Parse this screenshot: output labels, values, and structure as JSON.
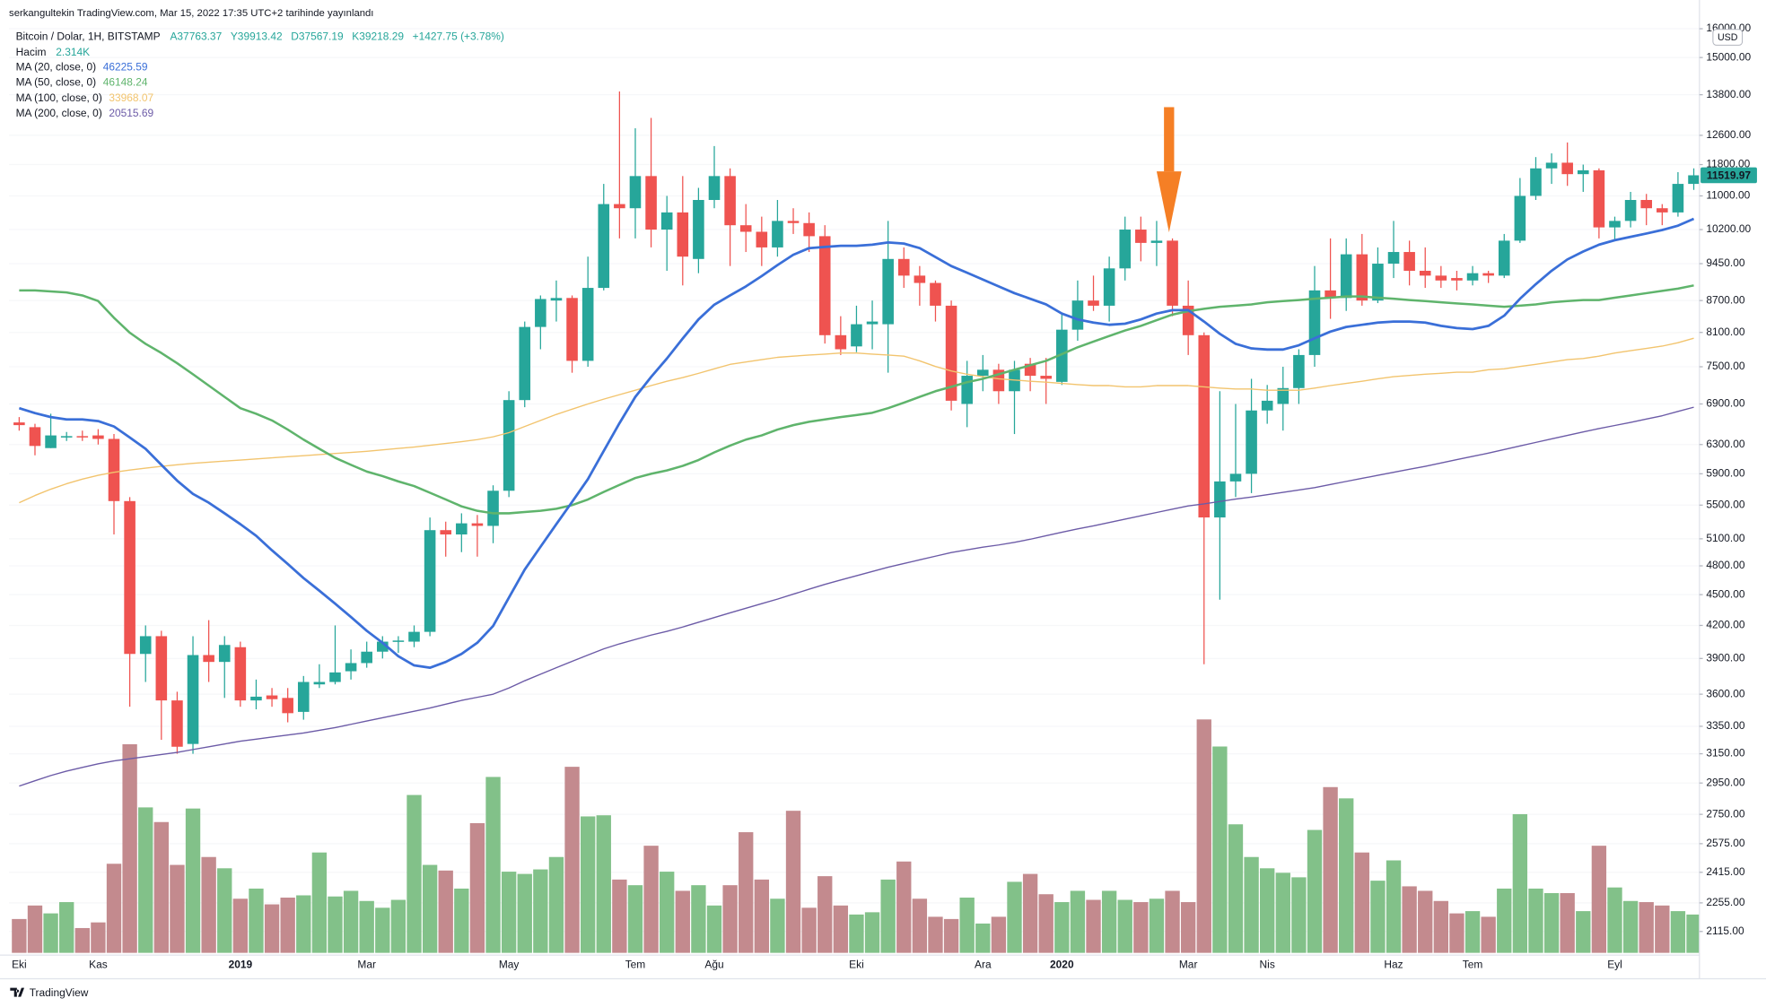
{
  "header": "serkangultekin TradingView.com, Mar 15, 2022 17:35 UTC+2 tarihinde yayınlandı",
  "chart_data": {
    "type": "candlestick",
    "symbol": "Bitcoin / Dolar, 1H, BITSTAMP",
    "ohlc_labels": [
      "A37763.37",
      "Y39913.42",
      "D37567.19",
      "K39218.29"
    ],
    "change": "+1427.75 (+3.78%)",
    "volume_name": "Hacim",
    "volume_legend": "2.314K",
    "currency": "USD",
    "categories": [
      "Eki",
      null,
      null,
      null,
      null,
      "Kas",
      null,
      null,
      null,
      null,
      null,
      null,
      null,
      null,
      "2019",
      null,
      null,
      null,
      null,
      null,
      null,
      null,
      "Mar",
      null,
      null,
      null,
      null,
      null,
      null,
      null,
      null,
      "May",
      null,
      null,
      null,
      null,
      null,
      null,
      null,
      "Tem",
      null,
      null,
      null,
      null,
      "Ağu",
      null,
      null,
      null,
      null,
      null,
      null,
      null,
      null,
      "Eki",
      null,
      null,
      null,
      null,
      null,
      null,
      null,
      "Ara",
      null,
      null,
      null,
      null,
      "2020",
      null,
      null,
      null,
      null,
      null,
      null,
      null,
      "Mar",
      null,
      null,
      null,
      null,
      "Nis",
      null,
      null,
      null,
      null,
      null,
      null,
      null,
      "Haz",
      null,
      null,
      null,
      null,
      "Tem",
      null,
      null,
      null,
      null,
      null,
      null,
      null,
      null,
      "Eyl",
      null,
      null,
      null,
      null,
      null
    ],
    "open": [
      6620,
      6550,
      6250,
      6400,
      6420,
      6430,
      6380,
      5550,
      3940,
      4100,
      3550,
      3220,
      3930,
      3870,
      4000,
      3550,
      3590,
      3570,
      3460,
      3680,
      3700,
      3790,
      3860,
      3960,
      4050,
      4050,
      4140,
      5200,
      5150,
      5280,
      5250,
      5680,
      6960,
      8200,
      8700,
      8750,
      7600,
      8950,
      10800,
      10700,
      11500,
      10200,
      10600,
      9550,
      10900,
      11500,
      10300,
      10150,
      9800,
      10400,
      10350,
      10050,
      8050,
      7850,
      8250,
      8250,
      9550,
      9200,
      9050,
      8600,
      6900,
      7350,
      7450,
      7100,
      7550,
      7350,
      7250,
      8150,
      8700,
      8600,
      9350,
      10200,
      9900,
      9950,
      8600,
      8050,
      5350,
      5800,
      5900,
      6800,
      6900,
      7150,
      7700,
      8900,
      8750,
      9650,
      8700,
      9450,
      9700,
      9300,
      9200,
      9150,
      9100,
      9250,
      9200,
      9950,
      11000,
      11700,
      11850,
      11550,
      11650,
      10250,
      10400,
      10900,
      10700,
      10600,
      11300
    ],
    "high": [
      6700,
      6600,
      6750,
      6480,
      6500,
      6520,
      6450,
      5600,
      4200,
      4150,
      3620,
      4100,
      4250,
      4100,
      4050,
      3720,
      3650,
      3650,
      3750,
      3850,
      4200,
      3980,
      4050,
      4100,
      4100,
      4200,
      5350,
      5300,
      5400,
      5380,
      5750,
      7100,
      8300,
      8800,
      9100,
      8800,
      9600,
      11300,
      13900,
      12800,
      13100,
      11000,
      11500,
      11200,
      12300,
      11700,
      10800,
      10500,
      10900,
      10700,
      10600,
      10300,
      8400,
      8600,
      8700,
      10400,
      9800,
      9400,
      9100,
      8700,
      7600,
      7700,
      7550,
      7600,
      7650,
      7650,
      8450,
      9100,
      9200,
      9600,
      10500,
      10500,
      10400,
      10000,
      9100,
      8100,
      7100,
      6900,
      7300,
      7200,
      7500,
      7800,
      9400,
      10000,
      10000,
      10100,
      9800,
      10400,
      9950,
      9800,
      9400,
      9300,
      9400,
      9300,
      10100,
      11450,
      12000,
      12100,
      12400,
      11800,
      11700,
      10500,
      11100,
      11050,
      10800,
      11600,
      11700
    ],
    "low": [
      6500,
      6150,
      6250,
      6350,
      6350,
      6300,
      5150,
      3500,
      3700,
      3250,
      3150,
      3150,
      3700,
      3570,
      3500,
      3480,
      3500,
      3380,
      3400,
      3650,
      3680,
      3720,
      3820,
      3900,
      3950,
      4000,
      4100,
      4900,
      4950,
      4900,
      5050,
      5600,
      6850,
      7800,
      8300,
      7400,
      7500,
      8900,
      10000,
      10000,
      9800,
      9300,
      9000,
      9250,
      10700,
      9400,
      9700,
      9400,
      9600,
      10100,
      9700,
      7900,
      7700,
      7750,
      7800,
      7400,
      8950,
      8600,
      8300,
      6800,
      6550,
      7100,
      6900,
      6450,
      7100,
      6900,
      7200,
      7950,
      8500,
      8300,
      9100,
      9500,
      9400,
      8400,
      7700,
      3850,
      4450,
      5600,
      5650,
      6600,
      6500,
      6900,
      7500,
      8350,
      8500,
      8600,
      8650,
      9150,
      9000,
      8950,
      8950,
      8900,
      9000,
      9050,
      9150,
      9900,
      10900,
      11300,
      11250,
      11100,
      10000,
      9950,
      10250,
      10300,
      10300,
      10500,
      11150
    ],
    "close": [
      6580,
      6280,
      6430,
      6420,
      6410,
      6380,
      5550,
      3940,
      4100,
      3550,
      3200,
      3930,
      3870,
      4020,
      3550,
      3580,
      3560,
      3450,
      3700,
      3700,
      3780,
      3860,
      3960,
      4050,
      4060,
      4140,
      5200,
      5150,
      5280,
      5250,
      5680,
      6960,
      8200,
      8730,
      8750,
      7600,
      8950,
      10800,
      10700,
      11500,
      10200,
      10600,
      9600,
      10900,
      11500,
      10300,
      10150,
      9800,
      10400,
      10350,
      10050,
      8050,
      7800,
      8250,
      8300,
      9550,
      9200,
      9050,
      8600,
      6950,
      7350,
      7450,
      7100,
      7450,
      7350,
      7300,
      8150,
      8700,
      8600,
      9350,
      10200,
      9900,
      9950,
      8600,
      8050,
      5350,
      5800,
      5900,
      6800,
      6950,
      7150,
      7700,
      8900,
      8750,
      9650,
      8700,
      9450,
      9700,
      9300,
      9200,
      9100,
      9100,
      9250,
      9200,
      9950,
      11000,
      11700,
      11850,
      11550,
      11650,
      10250,
      10400,
      10900,
      10700,
      10600,
      11300,
      11520
    ],
    "volume": [
      30,
      42,
      35,
      45,
      22,
      27,
      79,
      185,
      129,
      116,
      78,
      128,
      85,
      75,
      48,
      57,
      43,
      49,
      51,
      89,
      50,
      55,
      46,
      40,
      47,
      140,
      78,
      73,
      57,
      115,
      156,
      72,
      70,
      74,
      85,
      165,
      121,
      122,
      65,
      60,
      95,
      72,
      55,
      60,
      42,
      60,
      107,
      65,
      48,
      126,
      40,
      68,
      42,
      34,
      36,
      65,
      81,
      48,
      32,
      30,
      49,
      26,
      32,
      63,
      70,
      52,
      45,
      55,
      47,
      55,
      47,
      45,
      48,
      55,
      45,
      207,
      183,
      114,
      85,
      75,
      71,
      67,
      109,
      147,
      137,
      89,
      64,
      82,
      59,
      55,
      46,
      35,
      37,
      32,
      57,
      123,
      57,
      53,
      53,
      37,
      95,
      58,
      46,
      45,
      42,
      37,
      34
    ],
    "up_color": "#26a69a",
    "down_color": "#ef5350",
    "volume_up_color": "#82c189",
    "volume_down_color": "#c38a8e",
    "ma": [
      {
        "name": "MA (20, close, 0)",
        "color": "#3a6fd8",
        "legend_value": 46225.59,
        "values": [
          6835,
          6760,
          6700,
          6665,
          6665,
          6640,
          6560,
          6400,
          6240,
          6020,
          5810,
          5640,
          5530,
          5400,
          5270,
          5135,
          4970,
          4820,
          4670,
          4540,
          4410,
          4280,
          4150,
          4040,
          3920,
          3840,
          3820,
          3870,
          3940,
          4040,
          4195,
          4470,
          4760,
          5010,
          5270,
          5540,
          5830,
          6210,
          6610,
          7010,
          7330,
          7640,
          7990,
          8340,
          8620,
          8800,
          8980,
          9190,
          9420,
          9640,
          9785,
          9810,
          9835,
          9835,
          9860,
          9910,
          9885,
          9785,
          9590,
          9400,
          9260,
          9120,
          8980,
          8845,
          8735,
          8625,
          8450,
          8340,
          8280,
          8240,
          8260,
          8340,
          8450,
          8515,
          8515,
          8300,
          8075,
          7895,
          7815,
          7795,
          7795,
          7870,
          7995,
          8115,
          8200,
          8240,
          8280,
          8300,
          8300,
          8280,
          8220,
          8180,
          8160,
          8220,
          8410,
          8735,
          9025,
          9300,
          9540,
          9710,
          9860,
          9960,
          10035,
          10110,
          10190,
          10290,
          10450
        ]
      },
      {
        "name": "MA (50, close, 0)",
        "color": "#5fb46c",
        "legend_value": 46148.24,
        "values": [
          8900,
          8900,
          8880,
          8860,
          8800,
          8690,
          8370,
          8095,
          7895,
          7735,
          7560,
          7375,
          7190,
          7010,
          6835,
          6750,
          6650,
          6515,
          6370,
          6240,
          6115,
          6020,
          5930,
          5870,
          5800,
          5740,
          5655,
          5570,
          5485,
          5430,
          5400,
          5400,
          5415,
          5430,
          5455,
          5500,
          5570,
          5665,
          5755,
          5845,
          5900,
          5945,
          6005,
          6085,
          6190,
          6285,
          6370,
          6430,
          6515,
          6580,
          6630,
          6665,
          6700,
          6730,
          6765,
          6835,
          6920,
          7010,
          7100,
          7170,
          7245,
          7300,
          7375,
          7450,
          7525,
          7600,
          7715,
          7835,
          7935,
          8035,
          8135,
          8220,
          8325,
          8430,
          8495,
          8540,
          8580,
          8600,
          8625,
          8665,
          8690,
          8710,
          8735,
          8755,
          8780,
          8780,
          8755,
          8735,
          8710,
          8690,
          8665,
          8645,
          8625,
          8600,
          8580,
          8600,
          8625,
          8665,
          8690,
          8710,
          8710,
          8755,
          8800,
          8845,
          8890,
          8935,
          9000
        ]
      },
      {
        "name": "MA (100, close, 0)",
        "color": "#f2c46e",
        "legend_value": 33968.07,
        "values": [
          5530,
          5620,
          5700,
          5770,
          5830,
          5880,
          5920,
          5950,
          5975,
          6000,
          6020,
          6040,
          6055,
          6070,
          6085,
          6100,
          6115,
          6130,
          6145,
          6160,
          6175,
          6190,
          6205,
          6225,
          6245,
          6265,
          6290,
          6315,
          6340,
          6370,
          6410,
          6470,
          6560,
          6650,
          6740,
          6820,
          6900,
          6975,
          7045,
          7115,
          7190,
          7260,
          7320,
          7390,
          7465,
          7540,
          7580,
          7620,
          7660,
          7680,
          7700,
          7715,
          7735,
          7735,
          7715,
          7700,
          7680,
          7600,
          7505,
          7430,
          7375,
          7335,
          7300,
          7280,
          7260,
          7245,
          7225,
          7205,
          7190,
          7190,
          7170,
          7170,
          7190,
          7190,
          7190,
          7170,
          7150,
          7135,
          7135,
          7115,
          7115,
          7115,
          7150,
          7190,
          7225,
          7260,
          7300,
          7335,
          7355,
          7375,
          7390,
          7410,
          7410,
          7450,
          7465,
          7505,
          7540,
          7580,
          7620,
          7640,
          7680,
          7735,
          7775,
          7815,
          7855,
          7915,
          7995
        ]
      },
      {
        "name": "MA (200, close, 0)",
        "color": "#6c5ba7",
        "legend_value": 20515.69,
        "values": [
          2930,
          2965,
          3000,
          3030,
          3055,
          3080,
          3100,
          3115,
          3130,
          3145,
          3160,
          3180,
          3200,
          3220,
          3240,
          3255,
          3270,
          3285,
          3300,
          3320,
          3340,
          3365,
          3390,
          3415,
          3440,
          3465,
          3490,
          3520,
          3550,
          3575,
          3600,
          3650,
          3710,
          3765,
          3820,
          3875,
          3930,
          3985,
          4030,
          4070,
          4110,
          4145,
          4185,
          4230,
          4275,
          4320,
          4365,
          4410,
          4455,
          4505,
          4555,
          4605,
          4650,
          4695,
          4740,
          4785,
          4825,
          4865,
          4905,
          4945,
          4975,
          5005,
          5030,
          5060,
          5095,
          5135,
          5175,
          5215,
          5250,
          5290,
          5330,
          5370,
          5410,
          5450,
          5490,
          5515,
          5545,
          5575,
          5600,
          5630,
          5660,
          5690,
          5720,
          5760,
          5800,
          5840,
          5880,
          5920,
          5960,
          6000,
          6045,
          6090,
          6135,
          6180,
          6230,
          6280,
          6330,
          6380,
          6430,
          6480,
          6530,
          6575,
          6620,
          6670,
          6720,
          6785,
          6850
        ]
      }
    ],
    "log_scale": true,
    "ylim": [
      2016,
      16305
    ],
    "yticks": [
      {
        "value": 16000,
        "label": "16000.00"
      },
      {
        "value": 15000,
        "label": "15000.00"
      },
      {
        "value": 13800,
        "label": "13800.00"
      },
      {
        "value": 12600,
        "label": "12600.00"
      },
      {
        "value": 11800,
        "label": "11800.00"
      },
      {
        "value": 11000,
        "label": "11000.00"
      },
      {
        "value": 10200,
        "label": "10200.00"
      },
      {
        "value": 9450,
        "label": "9450.00"
      },
      {
        "value": 8700,
        "label": "8700.00"
      },
      {
        "value": 8100,
        "label": "8100.00"
      },
      {
        "value": 7500,
        "label": "7500.00"
      },
      {
        "value": 6900,
        "label": "6900.00"
      },
      {
        "value": 6300,
        "label": "6300.00"
      },
      {
        "value": 5900,
        "label": "5900.00"
      },
      {
        "value": 5500,
        "label": "5500.00"
      },
      {
        "value": 5100,
        "label": "5100.00"
      },
      {
        "value": 4800,
        "label": "4800.00"
      },
      {
        "value": 4500,
        "label": "4500.00"
      },
      {
        "value": 4200,
        "label": "4200.00"
      },
      {
        "value": 3900,
        "label": "3900.00"
      },
      {
        "value": 3600,
        "label": "3600.00"
      },
      {
        "value": 3350,
        "label": "3350.00"
      },
      {
        "value": 3150,
        "label": "3150.00"
      },
      {
        "value": 2950,
        "label": "2950.00"
      },
      {
        "value": 2750,
        "label": "2750.00"
      },
      {
        "value": 2575,
        "label": "2575.00"
      },
      {
        "value": 2415,
        "label": "2415.00"
      },
      {
        "value": 2255,
        "label": "2255.00"
      },
      {
        "value": 2115,
        "label": "2115.00"
      }
    ],
    "grid": true,
    "last_price": 11519.97
  },
  "footer": "TradingView"
}
